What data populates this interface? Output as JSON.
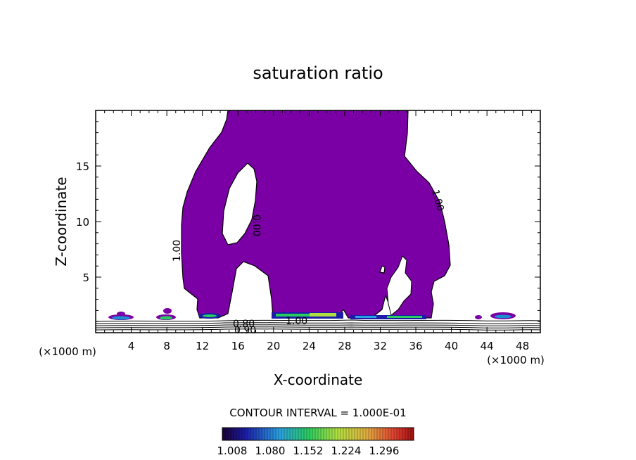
{
  "chart_data": {
    "type": "contour",
    "title": "saturation ratio",
    "xlabel": "X-coordinate",
    "ylabel": "Z-coordinate",
    "x_unit_left": "(×1000 m)",
    "x_unit_right": "(×1000 m)",
    "xlim": [
      0,
      50
    ],
    "ylim": [
      0,
      20
    ],
    "x_ticks": [
      4,
      8,
      12,
      16,
      20,
      24,
      28,
      32,
      36,
      40,
      44,
      48
    ],
    "y_ticks": [
      5,
      10,
      15
    ],
    "contour_labels": [
      "1.00",
      "0.00",
      "1.00",
      "1.00",
      "0.80",
      "0.90",
      "1.00"
    ],
    "contour_interval_text": "CONTOUR INTERVAL = 1.000E-01",
    "colorbar_ticks": [
      "1.008",
      "1.080",
      "1.152",
      "1.224",
      "1.296"
    ],
    "fill_color": "#7a00a6",
    "grid": false
  }
}
